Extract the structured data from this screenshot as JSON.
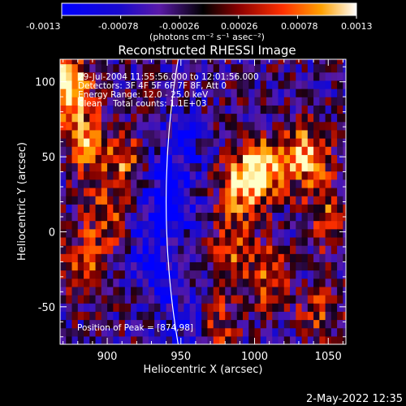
{
  "chart_data": {
    "type": "heatmap",
    "title": "Reconstructed RHESSI Image",
    "xlabel": "Heliocentric X (arcsec)",
    "ylabel": "Heliocentric Y (arcsec)",
    "xlim": [
      868,
      1062
    ],
    "ylim": [
      -75,
      115
    ],
    "xticks": [
      900,
      950,
      1000,
      1050
    ],
    "yticks": [
      -50,
      0,
      50,
      100
    ],
    "colorbar": {
      "ticks": [
        "-0.0013",
        "-0.00078",
        "-0.00026",
        "0.00026",
        "0.00078",
        "0.0013"
      ],
      "range": [
        -0.0013,
        0.0013
      ],
      "unit_label": "(photons cm⁻² s⁻¹ asec⁻²)"
    },
    "annotations": [
      "29-Jul-2004 11:55:56.000 to 12:01:56.000",
      "Detectors: 3F 4F 5F 6F 7F 8F, Att 0",
      "Energy Range: 12.0 - 25.0 keV",
      "Clean    Total counts: 1.1E+03"
    ],
    "peak_label": "Position of Peak = [874,98]",
    "timestamp": "2-May-2022 12:35",
    "hot_regions": [
      {
        "x": 874,
        "y": 98,
        "amplitude": 1.0
      },
      {
        "x": 885,
        "y": 60,
        "amplitude": 0.75
      },
      {
        "x": 900,
        "y": 10,
        "amplitude": 0.5
      },
      {
        "x": 912,
        "y": 45,
        "amplitude": 0.55
      },
      {
        "x": 885,
        "y": -20,
        "amplitude": 0.45
      },
      {
        "x": 1005,
        "y": 42,
        "amplitude": 0.95
      },
      {
        "x": 1035,
        "y": 50,
        "amplitude": 0.85
      },
      {
        "x": 990,
        "y": 30,
        "amplitude": 0.65
      },
      {
        "x": 985,
        "y": -10,
        "amplitude": 0.5
      },
      {
        "x": 1010,
        "y": -30,
        "amplitude": 0.55
      },
      {
        "x": 975,
        "y": -60,
        "amplitude": 0.45
      },
      {
        "x": 1050,
        "y": 10,
        "amplitude": 0.5
      },
      {
        "x": 1045,
        "y": -55,
        "amplitude": 0.4
      }
    ],
    "cold_regions": [
      {
        "x": 940,
        "y": 20,
        "amplitude": 0.7
      },
      {
        "x": 930,
        "y": -20,
        "amplitude": 0.55
      },
      {
        "x": 950,
        "y": 60,
        "amplitude": 0.45
      },
      {
        "x": 955,
        "y": -55,
        "amplitude": 0.4
      }
    ],
    "limb_x": 944
  }
}
